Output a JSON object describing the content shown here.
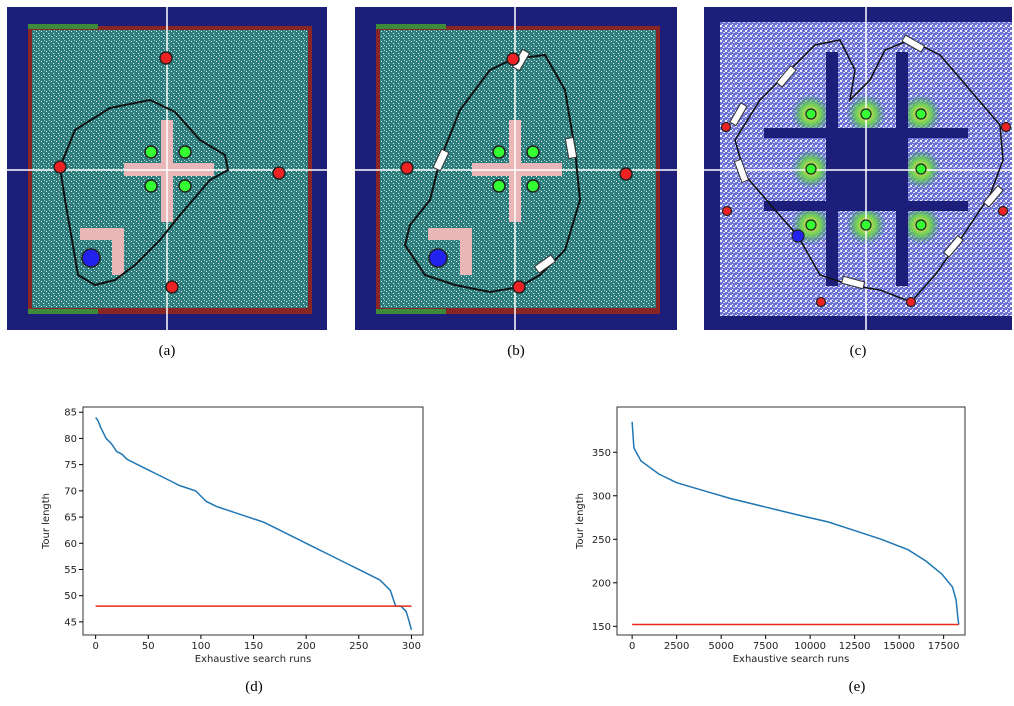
{
  "subfigures": [
    "(a)",
    "(b)",
    "(c)",
    "(d)",
    "(e)"
  ],
  "chart_data": [
    {
      "type": "line",
      "ylabel": "Tour length",
      "xlabel": "Exhaustive search runs",
      "xlim": [
        -12,
        311
      ],
      "xticks": [
        0,
        50,
        100,
        150,
        200,
        250,
        300
      ],
      "ylim": [
        42.5,
        86
      ],
      "yticks": [
        45,
        50,
        55,
        60,
        65,
        70,
        75,
        80,
        85
      ],
      "series": [
        {
          "color": "#1f77b4",
          "x": [
            0,
            2,
            5,
            10,
            15,
            20,
            25,
            30,
            40,
            50,
            60,
            70,
            80,
            95,
            105,
            115,
            130,
            145,
            160,
            170,
            180,
            190,
            200,
            210,
            220,
            230,
            240,
            250,
            260,
            270,
            280,
            285,
            290,
            295,
            298,
            300
          ],
          "values": [
            84,
            83.5,
            82,
            80,
            79,
            77.5,
            77,
            76,
            75,
            74,
            73,
            72,
            71,
            70,
            68,
            67,
            66,
            65,
            64,
            63,
            62,
            61,
            60,
            59,
            58,
            57,
            56,
            55,
            54,
            53,
            51,
            48,
            48,
            47,
            45,
            43.5
          ]
        },
        {
          "color": "#e8291c",
          "x": [
            0,
            300
          ],
          "values": [
            48,
            48
          ]
        }
      ]
    },
    {
      "type": "line",
      "ylabel": "Tour length",
      "xlabel": "Exhaustive search runs",
      "xlim": [
        -850,
        18700
      ],
      "xticks": [
        0,
        2500,
        5000,
        7500,
        10000,
        12500,
        15000,
        17500
      ],
      "ylim": [
        140,
        402
      ],
      "yticks": [
        150,
        200,
        250,
        300,
        350
      ],
      "series": [
        {
          "color": "#1f77b4",
          "x": [
            0,
            100,
            500,
            1500,
            2500,
            4000,
            5500,
            7500,
            9500,
            11000,
            12500,
            14000,
            15500,
            16500,
            17400,
            18000,
            18200,
            18300,
            18350
          ],
          "values": [
            385,
            355,
            340,
            325,
            315,
            306,
            297,
            287,
            277,
            270,
            260,
            250,
            238,
            225,
            210,
            195,
            180,
            160,
            152
          ]
        },
        {
          "color": "#e8291c",
          "x": [
            0,
            18350
          ],
          "values": [
            152,
            152
          ]
        }
      ]
    }
  ]
}
